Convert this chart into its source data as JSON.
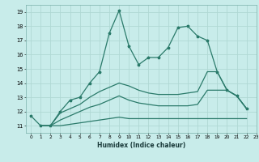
{
  "xlabel": "Humidex (Indice chaleur)",
  "line_main_x": [
    0,
    1,
    2,
    3,
    4,
    5,
    6,
    7,
    8,
    9,
    10,
    11,
    12,
    13,
    14,
    15,
    16,
    17,
    18,
    19,
    20,
    21,
    22
  ],
  "line_main_y": [
    11.7,
    11.0,
    11.0,
    12.0,
    12.8,
    13.0,
    14.0,
    14.8,
    17.5,
    19.1,
    16.6,
    15.3,
    15.8,
    15.8,
    16.5,
    17.9,
    18.0,
    17.3,
    17.0,
    14.8,
    13.5,
    13.1,
    12.2
  ],
  "line_top_x": [
    1,
    2,
    3,
    4,
    5,
    6,
    7,
    8,
    9,
    10,
    11,
    12,
    13,
    14,
    15,
    16,
    17,
    18,
    19,
    20,
    21,
    22
  ],
  "line_top_y": [
    11.0,
    11.0,
    11.9,
    12.2,
    12.5,
    13.0,
    13.4,
    13.7,
    14.0,
    13.8,
    13.5,
    13.3,
    13.2,
    13.2,
    13.2,
    13.3,
    13.4,
    14.8,
    14.8,
    13.5,
    13.1,
    12.2
  ],
  "line_mid_x": [
    1,
    2,
    3,
    4,
    5,
    6,
    7,
    8,
    9,
    10,
    11,
    12,
    13,
    14,
    15,
    16,
    17,
    18,
    19,
    20,
    21,
    22
  ],
  "line_mid_y": [
    11.0,
    11.0,
    11.4,
    11.7,
    12.0,
    12.3,
    12.5,
    12.8,
    13.1,
    12.8,
    12.6,
    12.5,
    12.4,
    12.4,
    12.4,
    12.4,
    12.5,
    13.5,
    13.5,
    13.5,
    13.1,
    12.2
  ],
  "line_low_x": [
    1,
    2,
    3,
    4,
    5,
    6,
    7,
    8,
    9,
    10,
    11,
    12,
    13,
    14,
    15,
    16,
    17,
    18,
    19,
    20,
    21,
    22
  ],
  "line_low_y": [
    11.0,
    11.0,
    11.0,
    11.1,
    11.2,
    11.3,
    11.4,
    11.5,
    11.6,
    11.5,
    11.5,
    11.5,
    11.5,
    11.5,
    11.5,
    11.5,
    11.5,
    11.5,
    11.5,
    11.5,
    11.5,
    11.5
  ],
  "line_color": "#2a7a6a",
  "bg_color": "#c8ecea",
  "grid_color": "#b0d8d4",
  "ylim": [
    10.5,
    19.5
  ],
  "xlim": [
    -0.5,
    23.0
  ],
  "yticks": [
    11,
    12,
    13,
    14,
    15,
    16,
    17,
    18,
    19
  ],
  "xticks": [
    0,
    1,
    2,
    3,
    4,
    5,
    6,
    7,
    8,
    9,
    10,
    11,
    12,
    13,
    14,
    15,
    16,
    17,
    18,
    19,
    20,
    21,
    22,
    23
  ]
}
